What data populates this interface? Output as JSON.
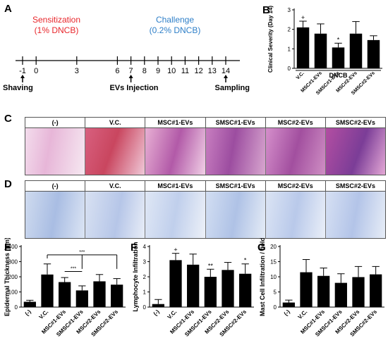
{
  "panels": {
    "a": "A",
    "b": "B",
    "c": "C",
    "d": "D",
    "e": "E",
    "f": "F",
    "g": "G"
  },
  "timeline": {
    "sensitization_title": "Sensitization",
    "sensitization_sub": "(1% DNCB)",
    "challenge_title": "Challenge",
    "challenge_sub": "(0.2% DNCB)",
    "ticks": [
      "-1",
      "0",
      "3",
      "6",
      "7",
      "8",
      "9",
      "10",
      "11",
      "12",
      "13",
      "14"
    ],
    "shaving_label": "Shaving",
    "evs_label": "EVs Injection",
    "sampling_label": "Sampling",
    "colors": {
      "sensitization": "#e8262b",
      "challenge": "#2e7fc8"
    }
  },
  "groups": [
    "(-)",
    "V.C.",
    "MSC#1-EVs",
    "SMSC#1-EVs",
    "MSC#2-EVs",
    "SMSC#2-EVs"
  ],
  "chart_data": [
    {
      "id": "B",
      "type": "bar",
      "categories": [
        "V.C.",
        "MSC#1-EVs",
        "SMSC#1-EVs",
        "MSC#2-EVs",
        "SMSC#2-EVs"
      ],
      "values": [
        2.1,
        1.78,
        1.07,
        1.78,
        1.45
      ],
      "errors": [
        0.32,
        0.5,
        0.22,
        0.62,
        0.22
      ],
      "ylabel": "Clinical Severity (Day 14)",
      "ylim": [
        0,
        3
      ],
      "yticks": [
        "0",
        "1",
        "2",
        "3"
      ],
      "bracket_label": "DNCB",
      "significance": [
        "+",
        "",
        "*",
        "",
        ""
      ]
    },
    {
      "id": "E",
      "type": "bar",
      "categories": [
        "(-)",
        "V.C.",
        "MSC#1-EVs",
        "SMSC#1-EVs",
        "MSC#2-EVs",
        "SMSC#2-EVs"
      ],
      "values": [
        35,
        215,
        165,
        110,
        170,
        148
      ],
      "errors": [
        10,
        70,
        30,
        30,
        45,
        40
      ],
      "ylabel": "Epidermal Thickness (μm)",
      "ylim": [
        0,
        400
      ],
      "yticks": [
        "0",
        "100",
        "200",
        "300",
        "400"
      ],
      "brackets": [
        "***",
        "***"
      ]
    },
    {
      "id": "F",
      "type": "bar",
      "categories": [
        "(-)",
        "V.C.",
        "MSC#1-EVs",
        "SMSC#1-EVs",
        "MSC#2-EVs",
        "SMSC#2-EVs"
      ],
      "values": [
        0.2,
        3.1,
        2.8,
        2.0,
        2.45,
        2.2
      ],
      "errors": [
        0.3,
        0.45,
        0.7,
        0.5,
        0.5,
        0.65
      ],
      "ylabel": "Lymphocyte Infiltration",
      "ylim": [
        0,
        4
      ],
      "yticks": [
        "0",
        "1",
        "2",
        "3",
        "4"
      ],
      "significance": [
        "",
        "+",
        "",
        "**",
        "",
        "*"
      ]
    },
    {
      "id": "G",
      "type": "bar",
      "categories": [
        "(-)",
        "V.C.",
        "MSC#1-EVs",
        "SMSC#1-EVs",
        "MSC#2-EVs",
        "SMSC#2-EVs"
      ],
      "values": [
        1.5,
        11.5,
        10.3,
        8.0,
        9.9,
        10.8
      ],
      "errors": [
        0.8,
        4.2,
        2.6,
        3.0,
        3.5,
        2.6
      ],
      "ylabel": "Mast Cell Infiltration / field",
      "ylim": [
        0,
        20
      ],
      "yticks": [
        "0",
        "5",
        "10",
        "15",
        "20"
      ]
    }
  ]
}
